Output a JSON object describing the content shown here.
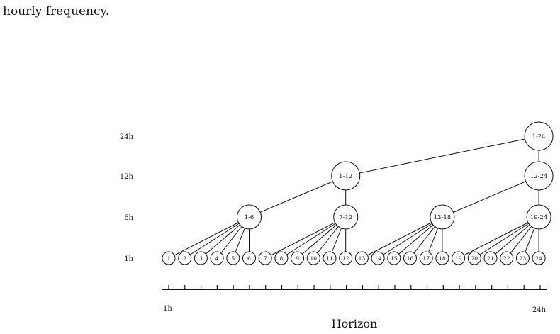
{
  "intro_text": "hourly frequency.",
  "diagram": {
    "levels": [
      {
        "label": "24h",
        "nodes": [
          "1-24"
        ]
      },
      {
        "label": "12h",
        "nodes": [
          "1-12",
          "12-24"
        ]
      },
      {
        "label": "6h",
        "nodes": [
          "1-6",
          "7-12",
          "13-18",
          "19-24"
        ]
      },
      {
        "label": "1h",
        "nodes": [
          "1",
          "2",
          "3",
          "4",
          "5",
          "6",
          "7",
          "8",
          "9",
          "10",
          "11",
          "12",
          "13",
          "14",
          "15",
          "16",
          "17",
          "18",
          "19",
          "20",
          "21",
          "22",
          "23",
          "24"
        ]
      }
    ],
    "axis": {
      "start_label": "1h",
      "end_label": "24h",
      "title": "Horizon",
      "tick_count": 24
    }
  }
}
